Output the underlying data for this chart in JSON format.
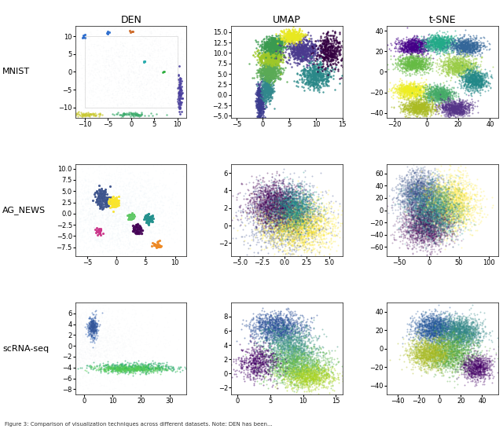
{
  "col_titles": [
    "DEN",
    "UMAP",
    "t-SNE"
  ],
  "row_labels": [
    "MNIST",
    "AG_NEWS",
    "scRNA-seq"
  ],
  "subplots": [
    {
      "row": 0,
      "col": 0,
      "xlim": [
        -12,
        12
      ],
      "ylim": [
        -13,
        13
      ],
      "xticks": [
        -10,
        -5,
        0,
        5,
        10
      ],
      "yticks": [
        -10,
        -5,
        0,
        5,
        10
      ],
      "clusters": [
        {
          "x_mean": -9.5,
          "y_mean": -12,
          "x_std": 1.8,
          "y_std": 0.3,
          "n": 80,
          "color": "#c8c830",
          "alpha": 0.7,
          "size": 3
        },
        {
          "x_mean": 0,
          "y_mean": -12,
          "x_std": 2.0,
          "y_std": 0.3,
          "n": 80,
          "color": "#3aaa6a",
          "alpha": 0.7,
          "size": 3
        },
        {
          "x_mean": 10.5,
          "y_mean": -6,
          "x_std": 0.25,
          "y_std": 2.5,
          "n": 80,
          "color": "#4a3f9f",
          "alpha": 0.9,
          "size": 4
        },
        {
          "x_mean": -10,
          "y_mean": 10,
          "x_std": 0.3,
          "y_std": 0.3,
          "n": 5,
          "color": "#2266cc",
          "alpha": 0.9,
          "size": 5
        },
        {
          "x_mean": -5,
          "y_mean": 11,
          "x_std": 0.2,
          "y_std": 0.2,
          "n": 4,
          "color": "#2266cc",
          "alpha": 0.9,
          "size": 5
        },
        {
          "x_mean": 0,
          "y_mean": 11.5,
          "x_std": 0.2,
          "y_std": 0.2,
          "n": 4,
          "color": "#cc6622",
          "alpha": 0.9,
          "size": 5
        },
        {
          "x_mean": 3,
          "y_mean": 3,
          "x_std": 0.2,
          "y_std": 0.2,
          "n": 4,
          "color": "#22aaaa",
          "alpha": 0.9,
          "size": 5
        },
        {
          "x_mean": 7,
          "y_mean": 0,
          "x_std": 0.15,
          "y_std": 0.15,
          "n": 3,
          "color": "#22aa33",
          "alpha": 0.9,
          "size": 4
        },
        {
          "x_mean": 0,
          "y_mean": 0,
          "x_std": 9,
          "y_std": 9,
          "n": 3000,
          "color": "#ccddee",
          "alpha": 0.07,
          "size": 1.5
        }
      ],
      "lines": [
        {
          "x": [
            -10,
            10,
            10,
            -10,
            -10
          ],
          "y": [
            10,
            10,
            -10,
            -10,
            10
          ],
          "color": "#aaaaaa",
          "lw": 0.6,
          "alpha": 0.4
        }
      ]
    },
    {
      "row": 0,
      "col": 1,
      "xlim": [
        -6,
        15
      ],
      "ylim": [
        -5.5,
        16.5
      ],
      "xticks": [
        -5,
        0,
        5,
        10,
        15
      ],
      "yticks": [
        -5.0,
        -2.5,
        0.0,
        2.5,
        5.0,
        7.5,
        10.0,
        12.5,
        15.0
      ],
      "clusters": [
        {
          "x_mean": -0.5,
          "y_mean": -1.5,
          "x_std": 0.35,
          "y_std": 2.0,
          "n": 400,
          "color": "#3b3b8e",
          "alpha": 0.85,
          "size": 3
        },
        {
          "x_mean": 0.8,
          "y_mean": 1.5,
          "x_std": 0.5,
          "y_std": 1.5,
          "n": 400,
          "color": "#31888c",
          "alpha": 0.85,
          "size": 3
        },
        {
          "x_mean": 1.2,
          "y_mean": 5.5,
          "x_std": 1.0,
          "y_std": 1.2,
          "n": 500,
          "color": "#5aaa55",
          "alpha": 0.85,
          "size": 3
        },
        {
          "x_mean": 1.5,
          "y_mean": 9.0,
          "x_std": 1.2,
          "y_std": 1.0,
          "n": 500,
          "color": "#9dc728",
          "alpha": 0.85,
          "size": 3
        },
        {
          "x_mean": 2.0,
          "y_mean": 12.0,
          "x_std": 1.2,
          "y_std": 1.0,
          "n": 500,
          "color": "#3a9a50",
          "alpha": 0.85,
          "size": 3
        },
        {
          "x_mean": 7.5,
          "y_mean": 10.5,
          "x_std": 1.5,
          "y_std": 1.5,
          "n": 600,
          "color": "#4a3a8e",
          "alpha": 0.85,
          "size": 3
        },
        {
          "x_mean": 10.0,
          "y_mean": 4.5,
          "x_std": 1.5,
          "y_std": 1.5,
          "n": 500,
          "color": "#2a8888",
          "alpha": 0.85,
          "size": 3
        },
        {
          "x_mean": 5.5,
          "y_mean": 14.0,
          "x_std": 1.0,
          "y_std": 0.7,
          "n": 350,
          "color": "#e8e820",
          "alpha": 0.85,
          "size": 3
        },
        {
          "x_mean": 12.5,
          "y_mean": 10.5,
          "x_std": 1.2,
          "y_std": 2.0,
          "n": 400,
          "color": "#330040",
          "alpha": 0.85,
          "size": 3
        }
      ],
      "lines": []
    },
    {
      "row": 0,
      "col": 2,
      "xlim": [
        -25,
        45
      ],
      "ylim": [
        -45,
        45
      ],
      "xticks": [
        -20,
        0,
        20,
        40
      ],
      "yticks": [
        -40,
        -20,
        0,
        20,
        40
      ],
      "clusters": [
        {
          "x_mean": -8,
          "y_mean": 25,
          "x_std": 5,
          "y_std": 4,
          "n": 800,
          "color": "#440088",
          "alpha": 0.6,
          "size": 2
        },
        {
          "x_mean": 8,
          "y_mean": 28,
          "x_std": 5,
          "y_std": 4,
          "n": 800,
          "color": "#22aa88",
          "alpha": 0.6,
          "size": 2
        },
        {
          "x_mean": 25,
          "y_mean": 25,
          "x_std": 5,
          "y_std": 4,
          "n": 800,
          "color": "#336699",
          "alpha": 0.6,
          "size": 2
        },
        {
          "x_mean": -8,
          "y_mean": 8,
          "x_std": 5,
          "y_std": 4,
          "n": 800,
          "color": "#66bb44",
          "alpha": 0.6,
          "size": 2
        },
        {
          "x_mean": 20,
          "y_mean": 6,
          "x_std": 6,
          "y_std": 5,
          "n": 800,
          "color": "#99cc44",
          "alpha": 0.6,
          "size": 2
        },
        {
          "x_mean": -10,
          "y_mean": -18,
          "x_std": 5,
          "y_std": 4,
          "n": 800,
          "color": "#eeee22",
          "alpha": 0.6,
          "size": 2
        },
        {
          "x_mean": 8,
          "y_mean": -22,
          "x_std": 5,
          "y_std": 4,
          "n": 800,
          "color": "#44aa66",
          "alpha": 0.6,
          "size": 2
        },
        {
          "x_mean": 30,
          "y_mean": -8,
          "x_std": 4,
          "y_std": 5,
          "n": 800,
          "color": "#228888",
          "alpha": 0.6,
          "size": 2
        },
        {
          "x_mean": 18,
          "y_mean": -35,
          "x_std": 5,
          "y_std": 4,
          "n": 800,
          "color": "#553388",
          "alpha": 0.6,
          "size": 2
        },
        {
          "x_mean": -5,
          "y_mean": -35,
          "x_std": 5,
          "y_std": 4,
          "n": 800,
          "color": "#aabb22",
          "alpha": 0.6,
          "size": 2
        }
      ],
      "lines": []
    },
    {
      "row": 1,
      "col": 0,
      "xlim": [
        -7,
        12
      ],
      "ylim": [
        -9.5,
        11
      ],
      "xticks": [
        -5,
        0,
        5,
        10
      ],
      "yticks": [
        -7.5,
        -5.0,
        -2.5,
        0.0,
        2.5,
        5.0,
        7.5,
        10.0
      ],
      "clusters": [
        {
          "x_mean": -2.5,
          "y_mean": 3.5,
          "x_std": 0.6,
          "y_std": 1.0,
          "n": 150,
          "color": "#3b528b",
          "alpha": 0.95,
          "size": 5
        },
        {
          "x_mean": -0.5,
          "y_mean": 2.5,
          "x_std": 0.4,
          "y_std": 0.6,
          "n": 100,
          "color": "#fde725",
          "alpha": 0.95,
          "size": 5
        },
        {
          "x_mean": 3.5,
          "y_mean": -3.5,
          "x_std": 0.4,
          "y_std": 0.5,
          "n": 80,
          "color": "#440154",
          "alpha": 0.95,
          "size": 6
        },
        {
          "x_mean": 5.5,
          "y_mean": -1,
          "x_std": 0.4,
          "y_std": 0.5,
          "n": 60,
          "color": "#21918c",
          "alpha": 0.95,
          "size": 5
        },
        {
          "x_mean": 2.5,
          "y_mean": -0.5,
          "x_std": 0.3,
          "y_std": 0.4,
          "n": 50,
          "color": "#5ec962",
          "alpha": 0.95,
          "size": 5
        },
        {
          "x_mean": -3,
          "y_mean": -4,
          "x_std": 0.3,
          "y_std": 0.4,
          "n": 40,
          "color": "#cc3388",
          "alpha": 0.95,
          "size": 5
        },
        {
          "x_mean": 7,
          "y_mean": -7,
          "x_std": 0.3,
          "y_std": 0.4,
          "n": 30,
          "color": "#ee8822",
          "alpha": 0.95,
          "size": 5
        },
        {
          "x_mean": 0,
          "y_mean": 0,
          "x_std": 5,
          "y_std": 5,
          "n": 3000,
          "color": "#bbccee",
          "alpha": 0.06,
          "size": 1.5
        }
      ],
      "lines": []
    },
    {
      "row": 1,
      "col": 1,
      "xlim": [
        -6,
        6.5
      ],
      "ylim": [
        -3.5,
        7
      ],
      "xticks": [
        -5.0,
        -2.5,
        0.0,
        2.5,
        5.0
      ],
      "yticks": [
        -2,
        0,
        2,
        4,
        6
      ],
      "clusters": [
        {
          "x_mean": 0,
          "y_mean": 1,
          "x_std": 2.0,
          "y_std": 1.8,
          "n": 2000,
          "color": "#3b528b",
          "alpha": 0.35,
          "size": 2
        },
        {
          "x_mean": 1.5,
          "y_mean": 0,
          "x_std": 2.0,
          "y_std": 1.5,
          "n": 2000,
          "color": "#fde725",
          "alpha": 0.35,
          "size": 2
        },
        {
          "x_mean": -1,
          "y_mean": 2.5,
          "x_std": 1.5,
          "y_std": 1.2,
          "n": 1500,
          "color": "#440154",
          "alpha": 0.4,
          "size": 2
        },
        {
          "x_mean": 1,
          "y_mean": 2,
          "x_std": 1.2,
          "y_std": 1.2,
          "n": 1000,
          "color": "#21918c",
          "alpha": 0.4,
          "size": 2
        }
      ],
      "lines": []
    },
    {
      "row": 1,
      "col": 2,
      "xlim": [
        -70,
        115
      ],
      "ylim": [
        -75,
        75
      ],
      "xticks": [
        -50,
        0,
        50,
        100
      ],
      "yticks": [
        -60,
        -40,
        -20,
        0,
        20,
        40,
        60
      ],
      "clusters": [
        {
          "x_mean": -15,
          "y_mean": 25,
          "x_std": 18,
          "y_std": 18,
          "n": 2000,
          "color": "#3b528b",
          "alpha": 0.3,
          "size": 2
        },
        {
          "x_mean": 35,
          "y_mean": 10,
          "x_std": 22,
          "y_std": 22,
          "n": 2000,
          "color": "#fde725",
          "alpha": 0.3,
          "size": 2
        },
        {
          "x_mean": -5,
          "y_mean": -25,
          "x_std": 20,
          "y_std": 18,
          "n": 2000,
          "color": "#440154",
          "alpha": 0.3,
          "size": 2
        },
        {
          "x_mean": 10,
          "y_mean": 0,
          "x_std": 22,
          "y_std": 22,
          "n": 2000,
          "color": "#21918c",
          "alpha": 0.25,
          "size": 2
        }
      ],
      "lines": []
    },
    {
      "row": 2,
      "col": 0,
      "xlim": [
        -3,
        36
      ],
      "ylim": [
        -9,
        8
      ],
      "xticks": [
        0,
        10,
        20,
        30
      ],
      "yticks": [
        -8,
        -6,
        -4,
        -2,
        0,
        2,
        4,
        6
      ],
      "clusters": [
        {
          "x_mean": 3,
          "y_mean": 3.5,
          "x_std": 1.0,
          "y_std": 1.2,
          "n": 200,
          "color": "#2255aa",
          "alpha": 0.5,
          "size": 2
        },
        {
          "x_mean": 3,
          "y_mean": 3.5,
          "x_std": 0.8,
          "y_std": 0.8,
          "n": 150,
          "color": "#335599",
          "alpha": 0.6,
          "size": 2
        },
        {
          "x_mean": 0,
          "y_mean": 0,
          "x_std": 12,
          "y_std": 4,
          "n": 3000,
          "color": "#ccddee",
          "alpha": 0.06,
          "size": 1.5
        },
        {
          "x_mean": 18,
          "y_mean": -4.0,
          "x_std": 8,
          "y_std": 0.45,
          "n": 500,
          "color": "#22aa66",
          "alpha": 0.6,
          "size": 2
        },
        {
          "x_mean": 16,
          "y_mean": -4.2,
          "x_std": 6,
          "y_std": 0.35,
          "n": 400,
          "color": "#55cc55",
          "alpha": 0.6,
          "size": 2
        }
      ],
      "lines": []
    },
    {
      "row": 2,
      "col": 1,
      "xlim": [
        -1,
        16
      ],
      "ylim": [
        -3,
        10
      ],
      "xticks": [
        0,
        5,
        10,
        15
      ],
      "yticks": [
        -2,
        0,
        2,
        4,
        6,
        8
      ],
      "clusters": [
        {
          "x_mean": 6,
          "y_mean": 6.5,
          "x_std": 2.0,
          "y_std": 1.0,
          "n": 1200,
          "color": "#2a5099",
          "alpha": 0.5,
          "size": 2
        },
        {
          "x_mean": 8,
          "y_mean": 3.5,
          "x_std": 2.0,
          "y_std": 1.5,
          "n": 1200,
          "color": "#449988",
          "alpha": 0.5,
          "size": 2
        },
        {
          "x_mean": 9,
          "y_mean": 1.0,
          "x_std": 2.5,
          "y_std": 1.2,
          "n": 1200,
          "color": "#66bb55",
          "alpha": 0.5,
          "size": 2
        },
        {
          "x_mean": 11,
          "y_mean": -0.5,
          "x_std": 2.0,
          "y_std": 0.8,
          "n": 800,
          "color": "#aad422",
          "alpha": 0.5,
          "size": 2
        },
        {
          "x_mean": 3,
          "y_mean": 1.5,
          "x_std": 1.5,
          "y_std": 1.2,
          "n": 600,
          "color": "#440066",
          "alpha": 0.5,
          "size": 2
        }
      ],
      "lines": []
    },
    {
      "row": 2,
      "col": 2,
      "xlim": [
        -50,
        55
      ],
      "ylim": [
        -50,
        50
      ],
      "xticks": [
        -40,
        -20,
        0,
        20,
        40
      ],
      "yticks": [
        -40,
        -20,
        0,
        20,
        40
      ],
      "clusters": [
        {
          "x_mean": -5,
          "y_mean": 22,
          "x_std": 10,
          "y_std": 8,
          "n": 1500,
          "color": "#225599",
          "alpha": 0.4,
          "size": 2
        },
        {
          "x_mean": 20,
          "y_mean": 18,
          "x_std": 10,
          "y_std": 8,
          "n": 1500,
          "color": "#338888",
          "alpha": 0.4,
          "size": 2
        },
        {
          "x_mean": 10,
          "y_mean": -5,
          "x_std": 12,
          "y_std": 10,
          "n": 1500,
          "color": "#55aa44",
          "alpha": 0.4,
          "size": 2
        },
        {
          "x_mean": -10,
          "y_mean": -5,
          "x_std": 10,
          "y_std": 8,
          "n": 1200,
          "color": "#aabb22",
          "alpha": 0.4,
          "size": 2
        },
        {
          "x_mean": 35,
          "y_mean": -20,
          "x_std": 7,
          "y_std": 7,
          "n": 800,
          "color": "#440066",
          "alpha": 0.4,
          "size": 2
        }
      ],
      "lines": []
    }
  ],
  "caption": "Figure 3: Comparison of visualization techniques across different datasets. Note: DEN has been...",
  "figsize": [
    6.4,
    5.46
  ],
  "dpi": 100
}
